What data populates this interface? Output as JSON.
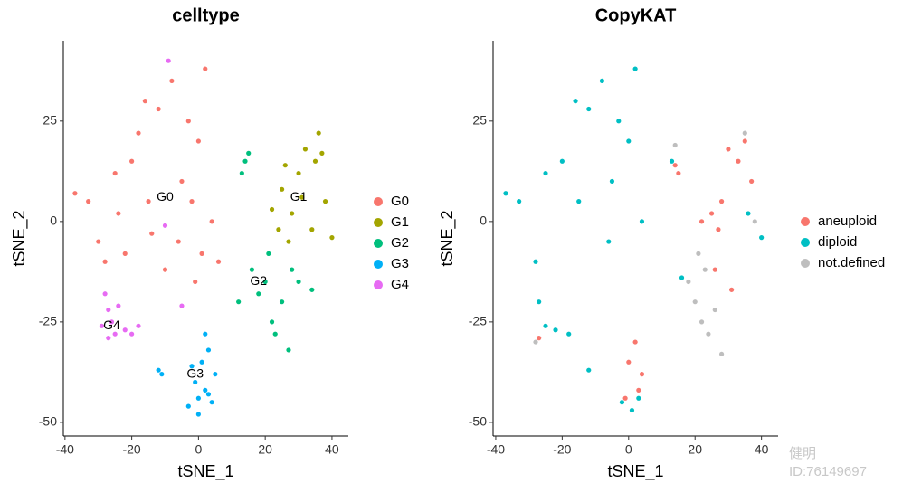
{
  "chart_data": [
    {
      "type": "scatter",
      "title": "celltype",
      "xlabel": "tSNE_1",
      "ylabel": "tSNE_2",
      "xlim": [
        -40.5,
        44.9
      ],
      "ylim": [
        -53.4,
        45.0
      ],
      "xticks": [
        -40,
        -20,
        0,
        20,
        40
      ],
      "yticks": [
        25,
        0,
        -25,
        -50
      ],
      "legend": "right",
      "series": [
        {
          "name": "G0",
          "color": "#F8766D",
          "x": [
            -37,
            -33,
            -30,
            -28,
            -25,
            -22,
            -20,
            -18,
            -15,
            -12,
            -10,
            -8,
            -5,
            -3,
            -1,
            0,
            2,
            4,
            -6,
            -14,
            -24,
            -2,
            1,
            6,
            -16
          ],
          "values": [
            7,
            5,
            -5,
            -10,
            12,
            -8,
            15,
            22,
            5,
            28,
            -12,
            35,
            10,
            25,
            -15,
            20,
            38,
            0,
            -5,
            -3,
            2,
            5,
            -8,
            -10,
            30
          ]
        },
        {
          "name": "G1",
          "color": "#A3A500",
          "x": [
            22,
            25,
            28,
            30,
            32,
            35,
            36,
            38,
            40,
            34,
            27,
            26,
            31,
            37,
            24
          ],
          "values": [
            3,
            8,
            2,
            12,
            18,
            15,
            22,
            5,
            -4,
            -2,
            -5,
            14,
            6,
            17,
            -2
          ]
        },
        {
          "name": "G2",
          "color": "#00BF7D",
          "x": [
            14,
            15,
            13,
            16,
            20,
            22,
            25,
            28,
            18,
            23,
            12,
            30,
            34,
            27,
            21
          ],
          "values": [
            15,
            17,
            12,
            -12,
            -15,
            -25,
            -20,
            -12,
            -18,
            -28,
            -20,
            -15,
            -17,
            -32,
            -8
          ]
        },
        {
          "name": "G3",
          "color": "#00B0F6",
          "x": [
            -12,
            -11,
            0,
            2,
            4,
            -3,
            1,
            3,
            2,
            -1,
            5,
            0,
            -2,
            3
          ],
          "values": [
            -37,
            -38,
            -44,
            -42,
            -45,
            -46,
            -35,
            -32,
            -28,
            -40,
            -38,
            -48,
            -36,
            -43
          ]
        },
        {
          "name": "G4",
          "color": "#E76BF3",
          "x": [
            -28,
            -27,
            -26,
            -25,
            -22,
            -20,
            -18,
            -27,
            -24,
            -29,
            -10,
            -9,
            -5
          ],
          "values": [
            -18,
            -22,
            -25,
            -28,
            -27,
            -28,
            -26,
            -29,
            -21,
            -26,
            -1,
            40,
            -21
          ]
        }
      ],
      "annotations": [
        {
          "text": "G0",
          "x": -10,
          "y": 6
        },
        {
          "text": "G1",
          "x": 30,
          "y": 6
        },
        {
          "text": "G2",
          "x": 18,
          "y": -15
        },
        {
          "text": "G3",
          "x": -1,
          "y": -38
        },
        {
          "text": "G4",
          "x": -26,
          "y": -26
        }
      ]
    },
    {
      "type": "scatter",
      "title": "CopyKAT",
      "xlabel": "tSNE_1",
      "ylabel": "tSNE_2",
      "xlim": [
        -40.8,
        45.0
      ],
      "ylim": [
        -53.4,
        45.0
      ],
      "xticks": [
        -40,
        -20,
        0,
        20,
        40
      ],
      "yticks": [
        25,
        0,
        -25,
        -50
      ],
      "legend": "right",
      "series": [
        {
          "name": "aneuploid",
          "color": "#F8766D",
          "x": [
            14,
            15,
            27,
            30,
            33,
            35,
            37,
            25,
            22,
            28,
            -27,
            2,
            4,
            -1,
            3,
            0,
            26,
            31
          ],
          "values": [
            14,
            12,
            -2,
            18,
            15,
            20,
            10,
            2,
            0,
            5,
            -29,
            -30,
            -38,
            -44,
            -42,
            -35,
            -12,
            -17
          ]
        },
        {
          "name": "diploid",
          "color": "#00BFC4",
          "x": [
            -37,
            -33,
            -28,
            -25,
            -20,
            -15,
            -12,
            -8,
            -5,
            -3,
            0,
            2,
            4,
            -6,
            -16,
            -27,
            -25,
            -22,
            -18,
            -12,
            1,
            -2,
            3,
            36,
            40,
            13,
            16
          ],
          "values": [
            7,
            5,
            -10,
            12,
            15,
            5,
            28,
            35,
            10,
            25,
            20,
            38,
            0,
            -5,
            30,
            -20,
            -26,
            -27,
            -28,
            -37,
            -47,
            -45,
            -44,
            2,
            -4,
            15,
            -14
          ]
        },
        {
          "name": "not.defined",
          "color": "#BEBEBE",
          "x": [
            18,
            20,
            22,
            24,
            26,
            28,
            14,
            -28,
            35,
            38,
            21,
            23
          ],
          "values": [
            -15,
            -20,
            -25,
            -28,
            -22,
            -33,
            19,
            -30,
            22,
            0,
            -8,
            -12
          ]
        }
      ]
    }
  ],
  "watermark": {
    "line1": "健明",
    "line2": "ID:76149697"
  }
}
